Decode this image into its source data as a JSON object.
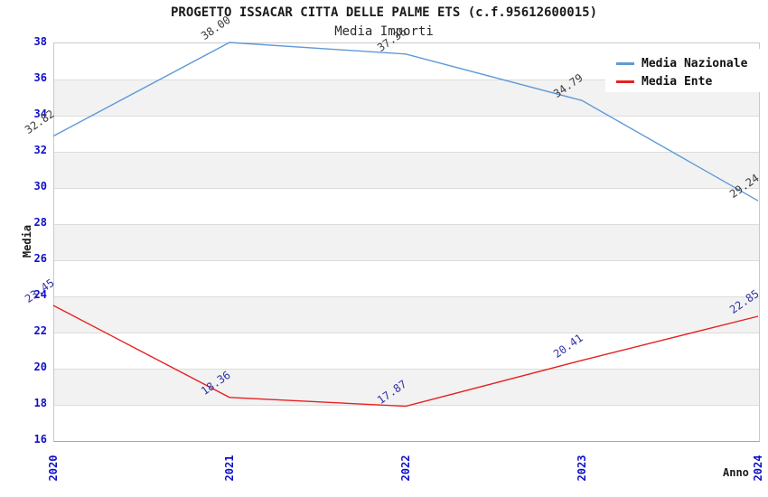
{
  "header": {
    "title": "PROGETTO ISSACAR CITTA DELLE PALME ETS (c.f.95612600015)",
    "subtitle": "Media Importi"
  },
  "chart_data": {
    "type": "line",
    "title": "PROGETTO ISSACAR CITTA DELLE PALME ETS (c.f.95612600015)",
    "subtitle": "Media Importi",
    "x": [
      "2020",
      "2021",
      "2022",
      "2023",
      "2024"
    ],
    "series": [
      {
        "name": "Media Nazionale",
        "color": "#5f9ad6",
        "label_color": "#3c3c3c",
        "values": [
          32.82,
          38.0,
          37.36,
          34.79,
          29.24
        ]
      },
      {
        "name": "Media Ente",
        "color": "#e62222",
        "label_color": "#3333a2",
        "values": [
          23.45,
          18.36,
          17.87,
          20.41,
          22.85
        ]
      }
    ],
    "xlabel": "Anno",
    "ylabel": "Media",
    "ylim": [
      16,
      38
    ],
    "ytick_step": 2,
    "yticks": [
      38,
      36,
      34,
      32,
      30,
      28,
      26,
      24,
      22,
      20,
      18,
      16
    ],
    "grid": true,
    "legend_position": "top-right",
    "band_colors": [
      "#ffffff",
      "#f2f2f2"
    ],
    "gridline_color": "#dcdcdc",
    "tick_label_color": "#0f0fc8",
    "line_width": 1.4,
    "label_format_decimals": 2
  }
}
